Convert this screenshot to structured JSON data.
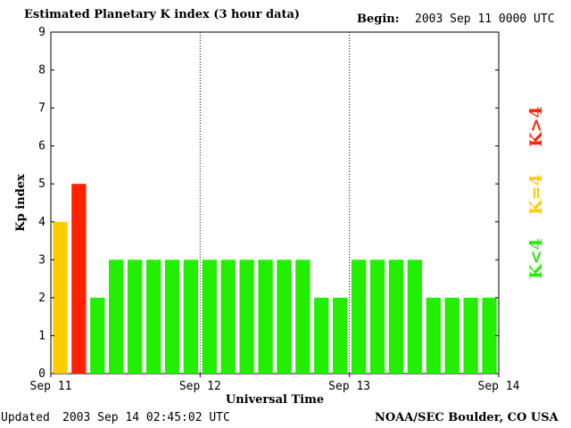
{
  "header": {
    "title": "Estimated Planetary K index (3 hour data)",
    "begin_label": "Begin:",
    "begin_value": "2003 Sep 11 0000 UTC"
  },
  "footer": {
    "updated_label": "Updated",
    "updated_value": "2003 Sep 14 02:45:02 UTC",
    "org": "NOAA/SEC Boulder, CO USA"
  },
  "legend": [
    {
      "label": "K>4",
      "color": "#ff2200"
    },
    {
      "label": "K=4",
      "color": "#ffcc00"
    },
    {
      "label": "K<4",
      "color": "#22ee00"
    }
  ],
  "colors": {
    "below4": "#22ee00",
    "equal4": "#ffcc00",
    "above4": "#ff2200"
  },
  "chart_data": {
    "type": "bar",
    "title": "Estimated Planetary K index (3 hour data)",
    "xlabel": "Universal Time",
    "ylabel": "Kp index",
    "ylim": [
      0,
      9
    ],
    "y_ticks": [
      0,
      1,
      2,
      3,
      4,
      5,
      6,
      7,
      8,
      9
    ],
    "x_tick_labels": [
      "Sep 11",
      "Sep 12",
      "Sep 13",
      "Sep 14"
    ],
    "interval_hours": 3,
    "day_separators": [
      "Sep 12",
      "Sep 13"
    ],
    "values": [
      4,
      5,
      2,
      3,
      3,
      3,
      3,
      3,
      3,
      3,
      3,
      3,
      3,
      3,
      2,
      2,
      3,
      3,
      3,
      3,
      2,
      2,
      2,
      2
    ]
  }
}
